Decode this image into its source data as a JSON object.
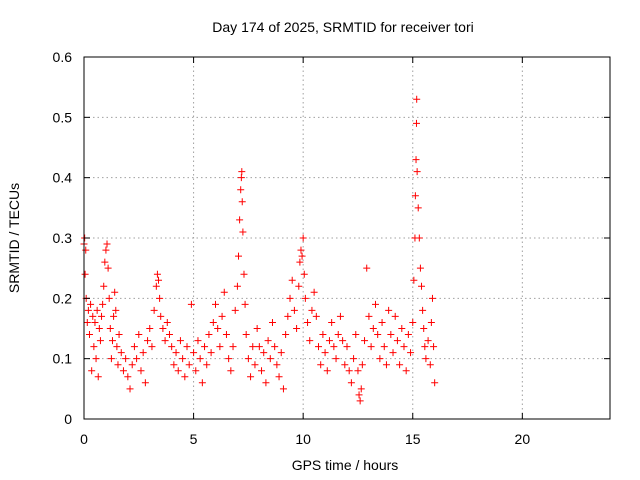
{
  "chart_data": {
    "type": "scatter",
    "title": "Day 174 of 2025, SRMTID for receiver tori",
    "xlabel": "GPS time / hours",
    "ylabel": "SRMTID / TECUs",
    "xlim": [
      0,
      24
    ],
    "ylim": [
      0,
      0.6
    ],
    "xticks": [
      0,
      5,
      10,
      15,
      20
    ],
    "xtick_labels": [
      "0",
      "5",
      "10",
      "15",
      "20"
    ],
    "yticks": [
      0,
      0.1,
      0.2,
      0.3,
      0.4,
      0.5,
      0.6
    ],
    "ytick_labels": [
      "0",
      "0.1",
      "0.2",
      "0.3",
      "0.4",
      "0.5",
      "0.6"
    ],
    "grid": true,
    "marker": "+",
    "color": "#ff0000",
    "series": [
      {
        "name": "SRMTID",
        "points": [
          [
            0.0,
            0.29
          ],
          [
            0.03,
            0.3
          ],
          [
            0.05,
            0.24
          ],
          [
            0.08,
            0.28
          ],
          [
            0.1,
            0.2
          ],
          [
            0.15,
            0.16
          ],
          [
            0.2,
            0.18
          ],
          [
            0.25,
            0.14
          ],
          [
            0.3,
            0.19
          ],
          [
            0.35,
            0.08
          ],
          [
            0.4,
            0.17
          ],
          [
            0.45,
            0.12
          ],
          [
            0.5,
            0.16
          ],
          [
            0.55,
            0.1
          ],
          [
            0.6,
            0.18
          ],
          [
            0.65,
            0.07
          ],
          [
            0.7,
            0.15
          ],
          [
            0.75,
            0.13
          ],
          [
            0.8,
            0.17
          ],
          [
            0.85,
            0.19
          ],
          [
            0.9,
            0.22
          ],
          [
            0.95,
            0.26
          ],
          [
            1.0,
            0.28
          ],
          [
            1.05,
            0.29
          ],
          [
            1.1,
            0.25
          ],
          [
            1.15,
            0.2
          ],
          [
            1.2,
            0.15
          ],
          [
            1.25,
            0.1
          ],
          [
            1.3,
            0.13
          ],
          [
            1.35,
            0.17
          ],
          [
            1.4,
            0.21
          ],
          [
            1.45,
            0.18
          ],
          [
            1.5,
            0.12
          ],
          [
            1.55,
            0.09
          ],
          [
            1.6,
            0.14
          ],
          [
            1.7,
            0.11
          ],
          [
            1.8,
            0.08
          ],
          [
            1.9,
            0.1
          ],
          [
            2.0,
            0.07
          ],
          [
            2.1,
            0.05
          ],
          [
            2.2,
            0.09
          ],
          [
            2.3,
            0.12
          ],
          [
            2.4,
            0.1
          ],
          [
            2.5,
            0.14
          ],
          [
            2.6,
            0.08
          ],
          [
            2.7,
            0.11
          ],
          [
            2.8,
            0.06
          ],
          [
            2.9,
            0.13
          ],
          [
            3.0,
            0.15
          ],
          [
            3.1,
            0.12
          ],
          [
            3.2,
            0.18
          ],
          [
            3.3,
            0.22
          ],
          [
            3.35,
            0.24
          ],
          [
            3.4,
            0.23
          ],
          [
            3.45,
            0.2
          ],
          [
            3.5,
            0.17
          ],
          [
            3.6,
            0.15
          ],
          [
            3.7,
            0.13
          ],
          [
            3.8,
            0.16
          ],
          [
            3.9,
            0.14
          ],
          [
            4.0,
            0.12
          ],
          [
            4.1,
            0.09
          ],
          [
            4.2,
            0.11
          ],
          [
            4.3,
            0.08
          ],
          [
            4.4,
            0.13
          ],
          [
            4.5,
            0.1
          ],
          [
            4.6,
            0.07
          ],
          [
            4.7,
            0.12
          ],
          [
            4.8,
            0.09
          ],
          [
            4.9,
            0.19
          ],
          [
            5.0,
            0.11
          ],
          [
            5.1,
            0.08
          ],
          [
            5.2,
            0.13
          ],
          [
            5.3,
            0.1
          ],
          [
            5.4,
            0.06
          ],
          [
            5.5,
            0.12
          ],
          [
            5.6,
            0.09
          ],
          [
            5.7,
            0.14
          ],
          [
            5.8,
            0.11
          ],
          [
            5.9,
            0.16
          ],
          [
            6.0,
            0.19
          ],
          [
            6.1,
            0.15
          ],
          [
            6.2,
            0.12
          ],
          [
            6.3,
            0.17
          ],
          [
            6.4,
            0.21
          ],
          [
            6.5,
            0.14
          ],
          [
            6.6,
            0.1
          ],
          [
            6.7,
            0.08
          ],
          [
            6.8,
            0.12
          ],
          [
            6.9,
            0.18
          ],
          [
            7.0,
            0.22
          ],
          [
            7.05,
            0.27
          ],
          [
            7.1,
            0.33
          ],
          [
            7.15,
            0.38
          ],
          [
            7.18,
            0.4
          ],
          [
            7.2,
            0.41
          ],
          [
            7.22,
            0.36
          ],
          [
            7.25,
            0.31
          ],
          [
            7.3,
            0.24
          ],
          [
            7.35,
            0.19
          ],
          [
            7.4,
            0.14
          ],
          [
            7.5,
            0.1
          ],
          [
            7.6,
            0.07
          ],
          [
            7.7,
            0.12
          ],
          [
            7.8,
            0.09
          ],
          [
            7.9,
            0.15
          ],
          [
            8.0,
            0.12
          ],
          [
            8.1,
            0.08
          ],
          [
            8.2,
            0.11
          ],
          [
            8.3,
            0.06
          ],
          [
            8.4,
            0.13
          ],
          [
            8.5,
            0.1
          ],
          [
            8.6,
            0.16
          ],
          [
            8.7,
            0.12
          ],
          [
            8.8,
            0.09
          ],
          [
            8.9,
            0.07
          ],
          [
            9.0,
            0.11
          ],
          [
            9.1,
            0.05
          ],
          [
            9.2,
            0.14
          ],
          [
            9.3,
            0.17
          ],
          [
            9.4,
            0.2
          ],
          [
            9.5,
            0.23
          ],
          [
            9.6,
            0.18
          ],
          [
            9.7,
            0.15
          ],
          [
            9.8,
            0.22
          ],
          [
            9.85,
            0.26
          ],
          [
            9.9,
            0.28
          ],
          [
            9.95,
            0.27
          ],
          [
            10.0,
            0.3
          ],
          [
            10.05,
            0.24
          ],
          [
            10.1,
            0.2
          ],
          [
            10.2,
            0.16
          ],
          [
            10.3,
            0.13
          ],
          [
            10.4,
            0.18
          ],
          [
            10.5,
            0.21
          ],
          [
            10.6,
            0.17
          ],
          [
            10.7,
            0.12
          ],
          [
            10.8,
            0.09
          ],
          [
            10.9,
            0.14
          ],
          [
            11.0,
            0.11
          ],
          [
            11.1,
            0.08
          ],
          [
            11.2,
            0.13
          ],
          [
            11.3,
            0.16
          ],
          [
            11.4,
            0.12
          ],
          [
            11.5,
            0.1
          ],
          [
            11.6,
            0.14
          ],
          [
            11.7,
            0.17
          ],
          [
            11.8,
            0.13
          ],
          [
            11.9,
            0.09
          ],
          [
            12.0,
            0.12
          ],
          [
            12.1,
            0.08
          ],
          [
            12.2,
            0.06
          ],
          [
            12.3,
            0.1
          ],
          [
            12.4,
            0.14
          ],
          [
            12.5,
            0.08
          ],
          [
            12.55,
            0.04
          ],
          [
            12.6,
            0.03
          ],
          [
            12.65,
            0.05
          ],
          [
            12.7,
            0.09
          ],
          [
            12.8,
            0.13
          ],
          [
            12.9,
            0.25
          ],
          [
            13.0,
            0.17
          ],
          [
            13.1,
            0.12
          ],
          [
            13.2,
            0.15
          ],
          [
            13.3,
            0.19
          ],
          [
            13.4,
            0.14
          ],
          [
            13.5,
            0.1
          ],
          [
            13.6,
            0.16
          ],
          [
            13.7,
            0.12
          ],
          [
            13.8,
            0.09
          ],
          [
            13.9,
            0.18
          ],
          [
            14.0,
            0.14
          ],
          [
            14.1,
            0.11
          ],
          [
            14.2,
            0.17
          ],
          [
            14.3,
            0.13
          ],
          [
            14.4,
            0.09
          ],
          [
            14.5,
            0.15
          ],
          [
            14.6,
            0.12
          ],
          [
            14.7,
            0.08
          ],
          [
            14.8,
            0.14
          ],
          [
            14.9,
            0.11
          ],
          [
            15.0,
            0.16
          ],
          [
            15.05,
            0.23
          ],
          [
            15.1,
            0.3
          ],
          [
            15.12,
            0.37
          ],
          [
            15.15,
            0.43
          ],
          [
            15.17,
            0.49
          ],
          [
            15.18,
            0.53
          ],
          [
            15.2,
            0.41
          ],
          [
            15.25,
            0.35
          ],
          [
            15.3,
            0.3
          ],
          [
            15.35,
            0.25
          ],
          [
            15.4,
            0.22
          ],
          [
            15.45,
            0.18
          ],
          [
            15.5,
            0.15
          ],
          [
            15.55,
            0.12
          ],
          [
            15.6,
            0.1
          ],
          [
            15.7,
            0.13
          ],
          [
            15.8,
            0.09
          ],
          [
            15.85,
            0.16
          ],
          [
            15.9,
            0.2
          ],
          [
            15.95,
            0.12
          ],
          [
            16.0,
            0.06
          ]
        ]
      }
    ]
  }
}
